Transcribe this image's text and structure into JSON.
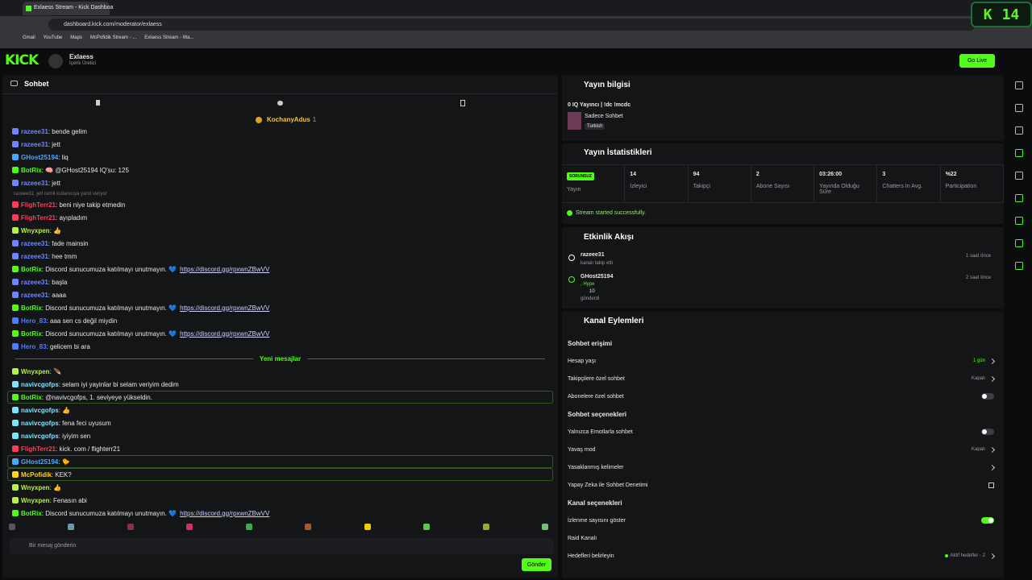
{
  "browser": {
    "tab_title": "Exlaess Stream - Kick Dashboa",
    "url": "dashboard.kick.com/moderator/exlaess",
    "bookmarks": [
      "Gmail",
      "YouTube",
      "Maps",
      "McPofidik Stream - ...",
      "Exlaess Stream - Wa..."
    ]
  },
  "overlay": {
    "logo": "K",
    "count": "14"
  },
  "header": {
    "logo": "KICK",
    "channel": "Exlaess",
    "role": "İçerik Üretici",
    "go_live": "Go Live"
  },
  "chat": {
    "title": "Sohbet",
    "pinned_user": "KochanyAdus",
    "pinned_count": "1",
    "separator": ": ",
    "messages": [
      {
        "user": "razeee31",
        "color": "#6f86ff",
        "text": "bende gelim"
      },
      {
        "user": "razeee31",
        "color": "#6f86ff",
        "text": "jett"
      },
      {
        "user": "GHost25194",
        "color": "#4aa8ff",
        "text": "liq"
      },
      {
        "user": "BotRix",
        "color": "#53fc18",
        "text": "🧠 @GHost25194 IQ'su: 125"
      },
      {
        "user": "razeee31",
        "color": "#6f86ff",
        "text": "jett"
      },
      {
        "reply": "razeee31: jett isimli kullanıcıya yanıt veriyor",
        "user": "FlighTerr21",
        "color": "#ff3d5a",
        "text": "beni niye takip etmedin"
      },
      {
        "user": "FlighTerr21",
        "color": "#ff3d5a",
        "text": "ayıpladım"
      },
      {
        "user": "Wnyxpen",
        "color": "#b6f04a",
        "text": "👍"
      },
      {
        "user": "razeee31",
        "color": "#6f86ff",
        "text": "fade mainsin"
      },
      {
        "user": "razeee31",
        "color": "#6f86ff",
        "text": "hee tmm"
      },
      {
        "user": "BotRix",
        "color": "#53fc18",
        "text": "Discord sunucumuza katılmayı unutmayın. 💙",
        "link": "https://discord.gg/rpxwnZBwVV"
      },
      {
        "user": "razeee31",
        "color": "#6f86ff",
        "text": "başla"
      },
      {
        "user": "razeee31",
        "color": "#6f86ff",
        "text": "aaaa"
      },
      {
        "user": "BotRix",
        "color": "#53fc18",
        "text": "Discord sunucumuza katılmayı unutmayın. 💙",
        "link": "https://discord.gg/rpxwnZBwVV"
      },
      {
        "user": "Hero_83",
        "color": "#4f7bff",
        "text": "aaa sen cs değil miydin"
      },
      {
        "user": "BotRix",
        "color": "#53fc18",
        "text": "Discord sunucumuza katılmayı unutmayın. 💙",
        "link": "https://discord.gg/rpxwnZBwVV"
      },
      {
        "user": "Hero_83",
        "color": "#4f7bff",
        "text": "gelicem bi ara"
      },
      {
        "divider": "Yeni mesajlar"
      },
      {
        "user": "Wnyxpen",
        "color": "#b6f04a",
        "text": "🪶"
      },
      {
        "user": "navivcgofps",
        "color": "#7fe3ff",
        "text": "selam iyi yayinlar bi selam veriyim dedim"
      },
      {
        "user": "BotRix",
        "color": "#53fc18",
        "text": "@navivcgofps, 1. seviyeye yükseldin.",
        "highlight": true
      },
      {
        "user": "navivcgofps",
        "color": "#7fe3ff",
        "text": "👍"
      },
      {
        "user": "navivcgofps",
        "color": "#7fe3ff",
        "text": "fena feci uyusum"
      },
      {
        "user": "navivcgofps",
        "color": "#7fe3ff",
        "text": "iyiyim sen"
      },
      {
        "user": "FlighTerr21",
        "color": "#ff3d5a",
        "text": "kick. com / flighterr21"
      },
      {
        "user": "GHost25194",
        "color": "#4aa8ff",
        "text": "🐤",
        "highlight": true
      },
      {
        "user": "McPofidik",
        "color": "#ffd21f",
        "text": "KEK?",
        "highlight": true
      },
      {
        "user": "Wnyxpen",
        "color": "#b6f04a",
        "text": "👍"
      },
      {
        "user": "Wnyxpen",
        "color": "#b6f04a",
        "text": "Fenasın abi"
      },
      {
        "user": "BotRix",
        "color": "#53fc18",
        "text": "Discord sunucumuza katılmayı unutmayın. 💙",
        "link": "https://discord.gg/rpxwnZBwVV"
      }
    ],
    "placeholder": "Bir mesaj gönderin",
    "send": "Gönder"
  },
  "stream_info": {
    "title": "Yayın bilgisi",
    "stream_title": "0 IQ Yayıncı | !dc !mcdc",
    "category": "Sadece Sohbet",
    "language": "Turkish"
  },
  "stats": {
    "title": "Yayın İstatistikleri",
    "items": [
      {
        "value": "SORUNSUZ",
        "label": "Yayın"
      },
      {
        "value": "14",
        "label": "İzleyici"
      },
      {
        "value": "94",
        "label": "Takipçi"
      },
      {
        "value": "2",
        "label": "Abone Sayısı"
      },
      {
        "value": "03:26:00",
        "label": "Yayında Olduğu Süre"
      },
      {
        "value": "3",
        "label": "Chatters In Avg."
      },
      {
        "value": "%22",
        "label": "Participation"
      }
    ],
    "status": "Stream started successfully."
  },
  "events": {
    "title": "Etkinlik Akışı",
    "items": [
      {
        "user": "razeee31",
        "action": "kanalı takip etti",
        "time": "1 saat önce"
      },
      {
        "user": "GHost25194",
        "tag": ", Hype",
        "amount": "10",
        "action": "gönderdi",
        "time": "2 saat önce"
      }
    ]
  },
  "actions": {
    "title": "Kanal Eylemleri",
    "sections": [
      {
        "title": "Sohbet erişimi",
        "rows": [
          {
            "label": "Hesap yaşı",
            "value": "1 gün",
            "kind": "chevron",
            "accent": true
          },
          {
            "label": "Takipçilere özel sohbet",
            "value": "Kapalı",
            "kind": "chevron"
          },
          {
            "label": "Abonelere özel sohbet",
            "kind": "toggle",
            "on": false
          }
        ]
      },
      {
        "title": "Sohbet seçenekleri",
        "rows": [
          {
            "label": "Yalnızca Emotlarla sohbet",
            "kind": "toggle",
            "on": false
          },
          {
            "label": "Yavaş mod",
            "value": "Kapalı",
            "kind": "chevron"
          },
          {
            "label": "Yasaklanmış kelimeler",
            "kind": "chevron"
          },
          {
            "label": "Yapay Zeka ile Sohbet Denetimi",
            "kind": "external"
          }
        ]
      },
      {
        "title": "Kanal seçenekleri",
        "rows": [
          {
            "label": "İzlenme sayısını göster",
            "kind": "toggle",
            "on": true
          },
          {
            "label": "Raid Kanalı",
            "kind": "none"
          },
          {
            "label": "Hedefleri belirleyin",
            "value": "Aktif hedefler - 2",
            "kind": "chevron",
            "dot": true
          }
        ]
      }
    ]
  }
}
